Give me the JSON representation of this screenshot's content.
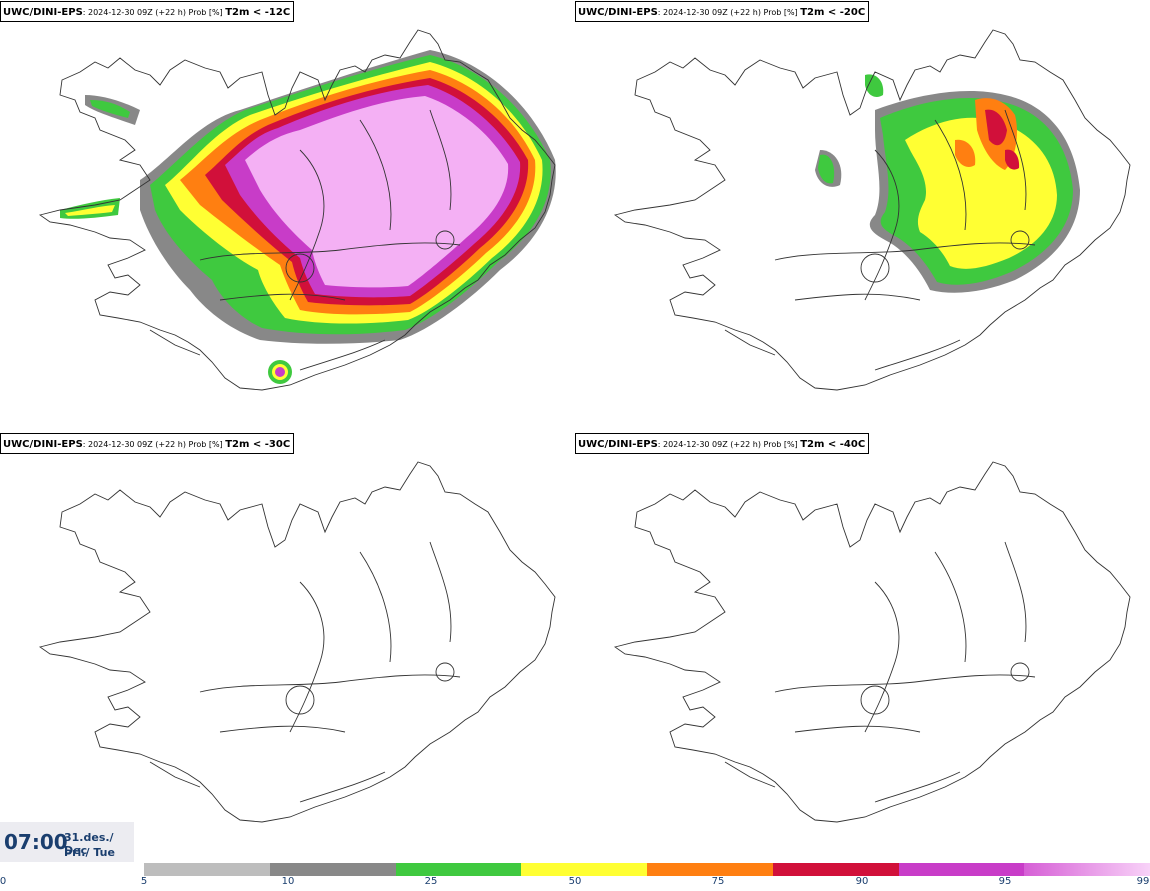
{
  "panels": [
    {
      "model": "UWC/DINI-EPS",
      "info": ": 2024-12-30 09Z (+22 h) Prob [%] ",
      "var": "T2m < -12C",
      "field": "p12"
    },
    {
      "model": "UWC/DINI-EPS",
      "info": ": 2024-12-30 09Z (+22 h) Prob [%] ",
      "var": "T2m < -20C",
      "field": "p20"
    },
    {
      "model": "UWC/DINI-EPS",
      "info": ": 2024-12-30 09Z (+22 h) Prob [%] ",
      "var": "T2m < -30C",
      "field": "none"
    },
    {
      "model": "UWC/DINI-EPS",
      "info": ": 2024-12-30 09Z (+22 h) Prob [%] ",
      "var": "T2m < -40C",
      "field": "none"
    }
  ],
  "valid_time": {
    "time": "07:00",
    "date_line1": "31.des./ Dec",
    "date_line2": "Þri./ Tue"
  },
  "colorbar": {
    "ticks": [
      "0",
      "5",
      "10",
      "25",
      "50",
      "75",
      "90",
      "95",
      "99"
    ],
    "colors": [
      "#bdbdbd",
      "#888888",
      "#3fc93f",
      "#ffff33",
      "#ff7f11",
      "#d1103a",
      "#c83cc8",
      "#f4b0f4"
    ]
  }
}
